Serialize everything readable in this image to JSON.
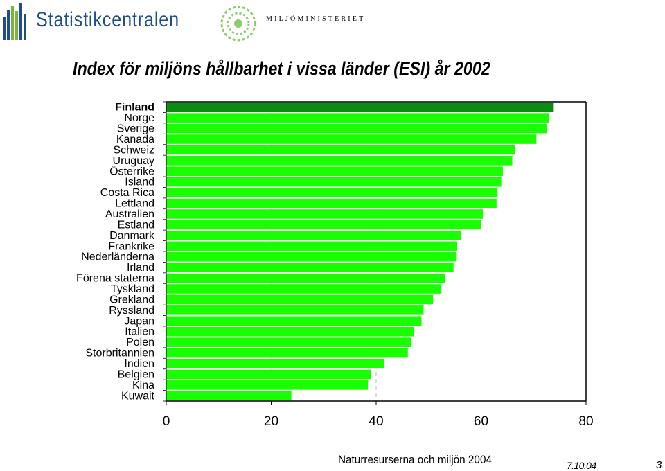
{
  "header": {
    "statistics_logo_text": "Statistikcentralen",
    "ministry_logo_text": "MILJÖMINISTERIET"
  },
  "chart_data": {
    "type": "bar",
    "orientation": "horizontal",
    "title": "Index för miljöns hållbarhet i vissa länder (ESI) år 2002",
    "categories": [
      "Finland",
      "Norge",
      "Sverige",
      "Kanada",
      "Schweiz",
      "Uruguay",
      "Österrike",
      "Island",
      "Costa Rica",
      "Lettland",
      "Australien",
      "Estland",
      "Danmark",
      "Frankrike",
      "Nederländerna",
      "Irland",
      "Förena staterna",
      "Tyskland",
      "Grekland",
      "Ryssland",
      "Japan",
      "Italien",
      "Polen",
      "Storbritannien",
      "Indien",
      "Belgien",
      "Kina",
      "Kuwait"
    ],
    "values": [
      73.9,
      73.0,
      72.6,
      70.6,
      66.5,
      66.0,
      64.2,
      63.9,
      63.2,
      63.0,
      60.4,
      60.0,
      56.2,
      55.5,
      55.4,
      54.8,
      53.2,
      52.5,
      50.9,
      49.1,
      48.7,
      47.2,
      46.7,
      46.1,
      41.6,
      39.1,
      38.5,
      23.9
    ],
    "highlight_index": 0,
    "colors": {
      "bar": "#19ff00",
      "highlight_bar": "#0a8c10",
      "bar_border": "#ffffff"
    },
    "xlim": [
      0,
      80
    ],
    "xticks": [
      0,
      20,
      40,
      60,
      80
    ],
    "xlabel": "",
    "ylabel": "",
    "grid": "vertical dashed"
  },
  "footer": {
    "source": "Naturresurserna och miljön 2004",
    "date": "7.10.04",
    "page": "3"
  }
}
